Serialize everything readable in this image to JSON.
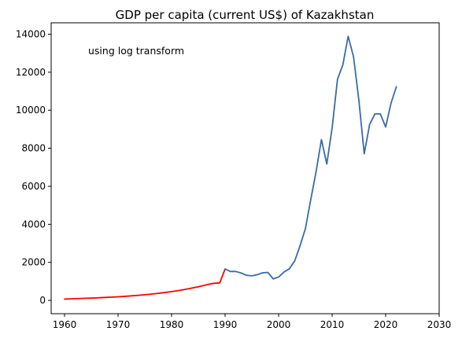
{
  "chart_data": {
    "type": "line",
    "title": "GDP per capita (current US$) of Kazakhstan",
    "annotation": "using log transform",
    "xlabel": "",
    "ylabel": "",
    "xlim": [
      1957.5,
      2030
    ],
    "ylim": [
      -700,
      14600
    ],
    "x_ticks": [
      "1960",
      "1970",
      "1980",
      "1990",
      "2000",
      "2010",
      "2020",
      "2030"
    ],
    "y_ticks": [
      "0",
      "2000",
      "4000",
      "6000",
      "8000",
      "10000",
      "12000",
      "14000"
    ],
    "grid": false,
    "series": [
      {
        "color": "#ff0000",
        "x": [
          1960,
          1961,
          1962,
          1963,
          1964,
          1965,
          1966,
          1967,
          1968,
          1969,
          1970,
          1971,
          1972,
          1973,
          1974,
          1975,
          1976,
          1977,
          1978,
          1979,
          1980,
          1981,
          1982,
          1983,
          1984,
          1985,
          1986,
          1987,
          1988,
          1989,
          1990
        ],
        "y": [
          70,
          80,
          90,
          100,
          110,
          120,
          132,
          145,
          160,
          175,
          190,
          208,
          228,
          250,
          273,
          298,
          325,
          355,
          388,
          423,
          462,
          505,
          552,
          603,
          658,
          718,
          782,
          850,
          900,
          920,
          1650
        ]
      },
      {
        "color": "#3a6aa8",
        "x": [
          1990,
          1991,
          1992,
          1993,
          1994,
          1995,
          1996,
          1997,
          1998,
          1999,
          2000,
          2001,
          2002,
          2003,
          2004,
          2005,
          2006,
          2007,
          2008,
          2009,
          2010,
          2011,
          2012,
          2013,
          2014,
          2015,
          2016,
          2017,
          2018,
          2019,
          2020,
          2021,
          2022
        ],
        "y": [
          1650,
          1520,
          1520,
          1440,
          1320,
          1290,
          1350,
          1450,
          1470,
          1130,
          1230,
          1490,
          1660,
          2070,
          2870,
          3770,
          5290,
          6770,
          8460,
          7170,
          9070,
          11630,
          12390,
          13890,
          12810,
          10510,
          7710,
          9250,
          9810,
          9810,
          9120,
          10370,
          11240
        ]
      }
    ]
  }
}
